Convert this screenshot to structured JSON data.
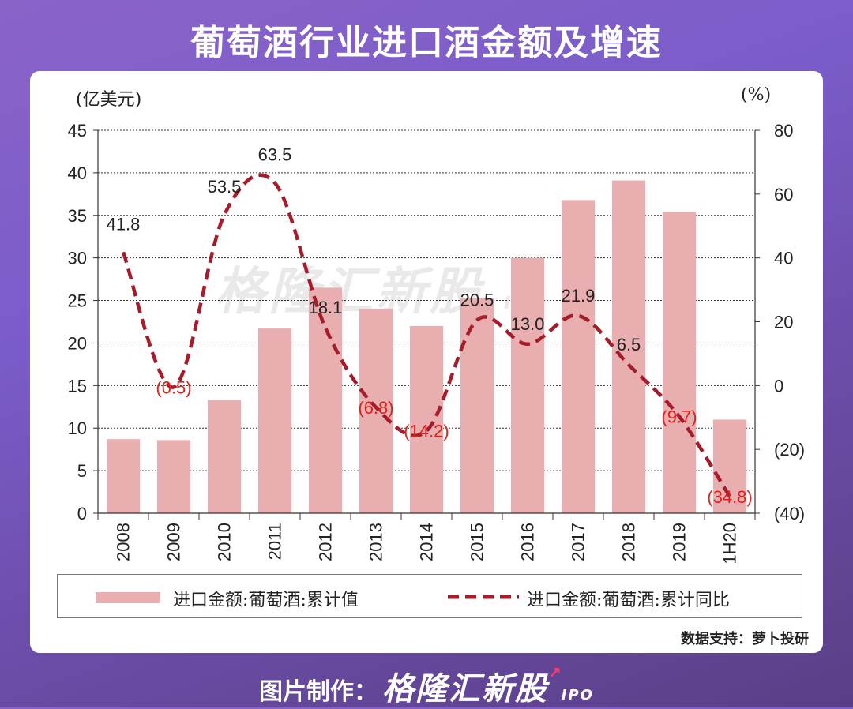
{
  "page": {
    "title": "葡萄酒行业进口酒金额及增速",
    "source": "数据支持：萝卜投研",
    "footer_label": "图片制作：",
    "footer_brand": "格隆汇新股",
    "footer_brand_suffix": "IPO",
    "watermark": "格隆汇新股",
    "watermark_suffix": "IPO"
  },
  "colors": {
    "bar": "#e8aeb0",
    "line": "#a61c2b",
    "negative_label": "#e0201b",
    "positive_label": "#222222"
  },
  "chart_data": {
    "type": "bar",
    "categories": [
      "2008",
      "2009",
      "2010",
      "2011",
      "2012",
      "2013",
      "2014",
      "2015",
      "2016",
      "2017",
      "2018",
      "2019",
      "1H20"
    ],
    "series": [
      {
        "name": "进口金额:葡萄酒:累计值",
        "type": "bar",
        "axis": "left",
        "values": [
          8.7,
          8.6,
          13.3,
          21.7,
          26.5,
          24.0,
          22.0,
          25.3,
          30.0,
          36.8,
          39.1,
          35.4,
          11.0
        ]
      },
      {
        "name": "进口金额:葡萄酒:累计同比",
        "type": "line",
        "style": "dashed-smooth",
        "axis": "right",
        "values": [
          41.8,
          -0.5,
          53.5,
          63.5,
          18.1,
          -6.8,
          -14.2,
          20.5,
          13.0,
          21.9,
          6.5,
          -9.7,
          -34.8
        ],
        "labels": [
          "41.8",
          "(0.5)",
          "53.5",
          "63.5",
          "18.1",
          "(6.8)",
          "(14.2)",
          "20.5",
          "13.0",
          "21.9",
          "6.5",
          "(9.7)",
          "(34.8)"
        ]
      }
    ],
    "y_left": {
      "unit_label": "(亿美元)",
      "ylim": [
        0,
        45
      ],
      "ticks": [
        "0",
        "5",
        "10",
        "15",
        "20",
        "25",
        "30",
        "35",
        "40",
        "45"
      ]
    },
    "y_right": {
      "unit_label": "(%)",
      "ylim": [
        -40,
        80
      ],
      "ticks": [
        "(40)",
        "(20)",
        "0",
        "20",
        "40",
        "60",
        "80"
      ]
    },
    "grid": true,
    "legend": "bottom"
  }
}
